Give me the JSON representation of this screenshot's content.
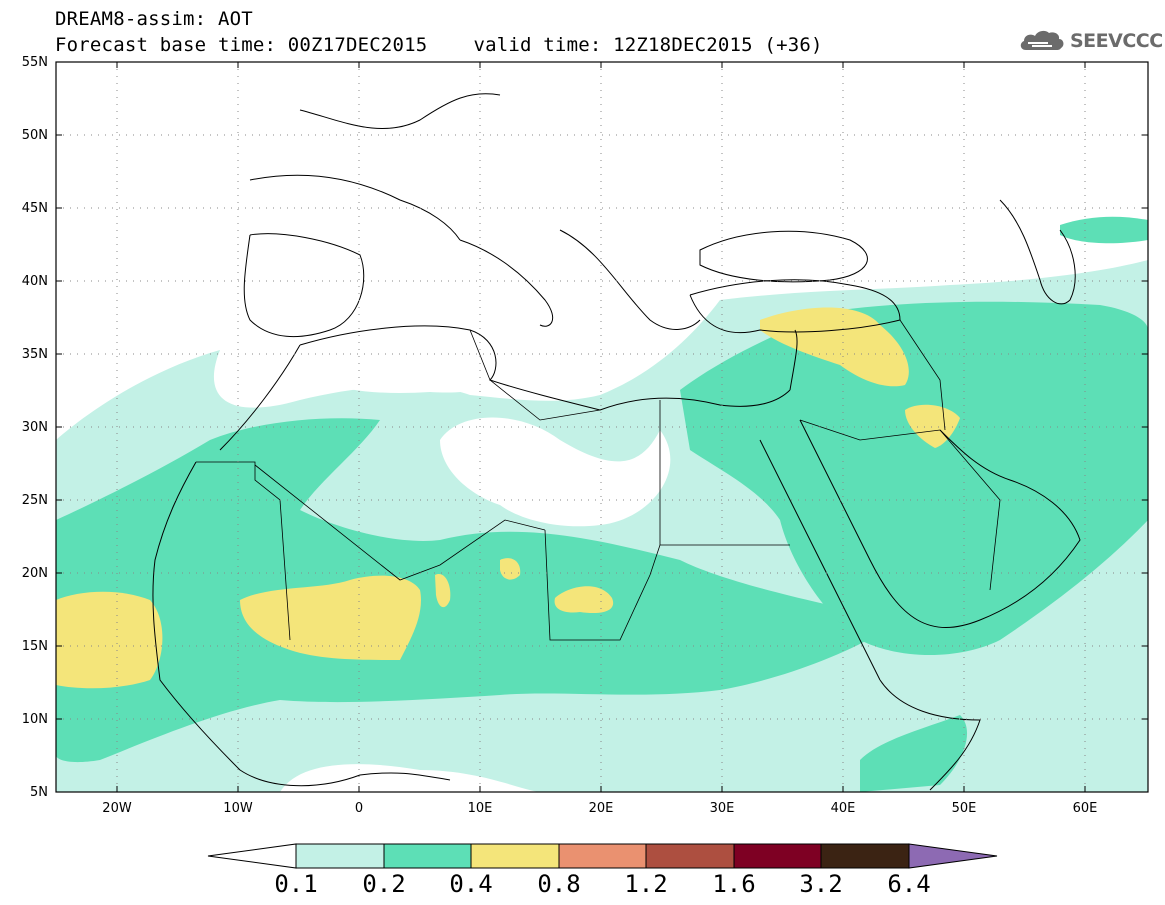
{
  "header": {
    "title_line1": "DREAM8-assim: AOT",
    "base_time": "Forecast base time: 00Z17DEC2015",
    "valid_time": "valid time: 12Z18DEC2015 (+36)",
    "logo_text": "SEEVCCC"
  },
  "map": {
    "projection": "lat-lon",
    "lon_range": [
      -25,
      65
    ],
    "lat_range": [
      5,
      55
    ],
    "lat_ticks": [
      "5N",
      "10N",
      "15N",
      "20N",
      "25N",
      "30N",
      "35N",
      "40N",
      "45N",
      "50N",
      "55N"
    ],
    "lon_ticks": [
      "20W",
      "10W",
      "0",
      "10E",
      "20E",
      "30E",
      "40E",
      "50E",
      "60E"
    ],
    "grid": "dotted",
    "field": "Aerosol Optical Thickness"
  },
  "colorbar": {
    "labels": [
      "0.1",
      "0.2",
      "0.4",
      "0.8",
      "1.2",
      "1.6",
      "3.2",
      "6.4"
    ],
    "colors": [
      "#ffffff",
      "#c3f1e6",
      "#5ddfb6",
      "#f4e57a",
      "#ea9170",
      "#ad4f40",
      "#7e0023",
      "#3b2313",
      "#8d6ab3"
    ]
  }
}
